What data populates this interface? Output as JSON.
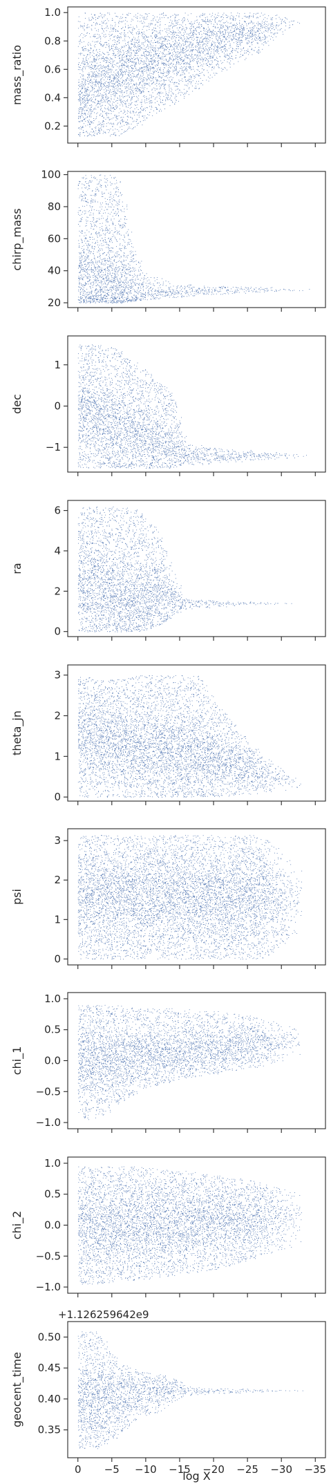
{
  "chart_data": {
    "type": "scatter",
    "xlabel": "log X",
    "x_axis_inverted": true,
    "xlim": [
      1.5,
      -36.5
    ],
    "x_ticks": [
      0,
      -5,
      -10,
      -15,
      -20,
      -25,
      -30,
      -35
    ],
    "x_tick_labels": [
      "0",
      "−5",
      "−10",
      "−15",
      "−20",
      "−25",
      "−30",
      "−35"
    ],
    "x_tick_labels_on": "bottom panel only",
    "shared_x": true,
    "marker_color": "#4c72b0",
    "grid": false,
    "legend": "none",
    "panels": [
      {
        "ylabel": "mass_ratio",
        "ylim": [
          0.08,
          1.04
        ],
        "y_ticks": [
          0.2,
          0.4,
          0.6,
          0.8,
          1.0
        ],
        "y_tick_labels": [
          "0.2",
          "0.4",
          "0.6",
          "0.8",
          "1.0"
        ],
        "x": [
          0,
          -3,
          -6,
          -9,
          -12,
          -15,
          -18,
          -21,
          -24,
          -27,
          -30,
          -33
        ],
        "y_upper": [
          1.0,
          1.0,
          1.0,
          1.0,
          1.0,
          1.0,
          1.0,
          1.0,
          1.0,
          1.0,
          0.98,
          0.93
        ],
        "y_lower": [
          0.13,
          0.13,
          0.13,
          0.2,
          0.3,
          0.38,
          0.48,
          0.58,
          0.66,
          0.72,
          0.85,
          0.9
        ],
        "y_center": [
          0.4,
          0.5,
          0.55,
          0.62,
          0.68,
          0.72,
          0.78,
          0.82,
          0.85,
          0.87,
          0.92,
          0.93
        ]
      },
      {
        "ylabel": "chirp_mass",
        "ylim": [
          17,
          102
        ],
        "y_ticks": [
          20,
          40,
          60,
          80,
          100
        ],
        "y_tick_labels": [
          "20",
          "40",
          "60",
          "80",
          "100"
        ],
        "x": [
          0,
          -3,
          -6,
          -8,
          -10,
          -13,
          -16,
          -20,
          -24,
          -28,
          -32,
          -35
        ],
        "y_upper": [
          100,
          100,
          100,
          60,
          38,
          34,
          32,
          31,
          30,
          30,
          29,
          28.5
        ],
        "y_lower": [
          20,
          20,
          20,
          21,
          22,
          23,
          24,
          25,
          26,
          27,
          27.5,
          27.8
        ],
        "y_center": [
          35,
          32,
          30,
          27,
          26,
          26,
          27,
          27.5,
          28,
          28,
          28,
          28
        ]
      },
      {
        "ylabel": "dec",
        "ylim": [
          -1.6,
          1.7
        ],
        "y_ticks": [
          -1,
          0,
          1
        ],
        "y_tick_labels": [
          "−1",
          "0",
          "1"
        ],
        "x": [
          0,
          -3,
          -6,
          -9,
          -12,
          -14,
          -16,
          -20,
          -24,
          -28,
          -32,
          -35
        ],
        "y_upper": [
          1.5,
          1.5,
          1.4,
          1.0,
          0.6,
          0.3,
          -0.9,
          -1.0,
          -1.05,
          -1.1,
          -1.15,
          -1.2
        ],
        "y_lower": [
          -1.5,
          -1.5,
          -1.5,
          -1.5,
          -1.5,
          -1.5,
          -1.45,
          -1.4,
          -1.35,
          -1.3,
          -1.25,
          -1.22
        ],
        "y_center": [
          0.0,
          -0.3,
          -0.5,
          -0.7,
          -0.8,
          -1.0,
          -1.15,
          -1.2,
          -1.2,
          -1.2,
          -1.2,
          -1.2
        ]
      },
      {
        "ylabel": "ra",
        "ylim": [
          -0.25,
          6.5
        ],
        "y_ticks": [
          0,
          2,
          4,
          6
        ],
        "y_tick_labels": [
          "0",
          "2",
          "4",
          "6"
        ],
        "x": [
          0,
          -3,
          -6,
          -9,
          -12,
          -14,
          -16,
          -20,
          -24,
          -28,
          -32,
          -35
        ],
        "y_upper": [
          6.2,
          6.2,
          6.2,
          6.0,
          5.0,
          3.0,
          1.6,
          1.55,
          1.5,
          1.45,
          1.42,
          1.4
        ],
        "y_lower": [
          0.0,
          0.0,
          0.0,
          0.0,
          0.3,
          0.8,
          1.1,
          1.2,
          1.3,
          1.35,
          1.38,
          1.4
        ],
        "y_center": [
          2.5,
          2.3,
          1.8,
          1.6,
          1.6,
          1.5,
          1.45,
          1.42,
          1.4,
          1.4,
          1.4,
          1.4
        ]
      },
      {
        "ylabel": "theta_jn",
        "ylim": [
          -0.1,
          3.25
        ],
        "y_ticks": [
          0,
          1,
          2,
          3
        ],
        "y_tick_labels": [
          "0",
          "1",
          "2",
          "3"
        ],
        "x": [
          0,
          -3,
          -6,
          -9,
          -12,
          -15,
          -18,
          -21,
          -24,
          -27,
          -30,
          -33
        ],
        "y_upper": [
          3.0,
          2.9,
          2.9,
          3.0,
          3.0,
          3.0,
          3.0,
          2.2,
          1.6,
          1.1,
          0.7,
          0.4
        ],
        "y_lower": [
          0.0,
          0.0,
          0.0,
          0.0,
          0.0,
          0.0,
          0.0,
          0.0,
          0.05,
          0.1,
          0.15,
          0.2
        ],
        "y_center": [
          1.6,
          1.5,
          1.4,
          1.3,
          1.2,
          1.1,
          1.0,
          0.9,
          0.8,
          0.6,
          0.45,
          0.3
        ]
      },
      {
        "ylabel": "psi",
        "ylim": [
          -0.15,
          3.3
        ],
        "y_ticks": [
          0,
          1,
          2,
          3
        ],
        "y_tick_labels": [
          "0",
          "1",
          "2",
          "3"
        ],
        "x": [
          0,
          -3,
          -6,
          -9,
          -12,
          -15,
          -18,
          -21,
          -24,
          -27,
          -30,
          -33
        ],
        "y_upper": [
          3.14,
          3.14,
          3.14,
          3.14,
          3.14,
          3.14,
          3.14,
          3.14,
          3.14,
          3.14,
          2.8,
          2.2
        ],
        "y_lower": [
          0.0,
          0.0,
          0.0,
          0.0,
          0.0,
          0.0,
          0.0,
          0.0,
          0.0,
          0.0,
          0.3,
          0.8
        ],
        "y_center": [
          1.57,
          1.57,
          1.57,
          1.57,
          1.57,
          1.57,
          1.57,
          1.57,
          1.57,
          1.57,
          1.57,
          1.57
        ]
      },
      {
        "ylabel": "chi_1",
        "ylim": [
          -1.1,
          1.1
        ],
        "y_ticks": [
          -1.0,
          -0.5,
          0.0,
          0.5,
          1.0
        ],
        "y_tick_labels": [
          "−1.0",
          "−0.5",
          "0.0",
          "0.5",
          "1.0"
        ],
        "x": [
          0,
          -3,
          -6,
          -9,
          -12,
          -15,
          -18,
          -21,
          -24,
          -27,
          -30,
          -33
        ],
        "y_upper": [
          0.9,
          0.9,
          0.9,
          0.85,
          0.85,
          0.85,
          0.8,
          0.8,
          0.75,
          0.7,
          0.6,
          0.5
        ],
        "y_lower": [
          -0.95,
          -0.95,
          -0.7,
          -0.5,
          -0.4,
          -0.3,
          -0.25,
          -0.2,
          -0.15,
          -0.1,
          0.0,
          0.1
        ],
        "y_center": [
          0.0,
          0.05,
          0.05,
          0.1,
          0.1,
          0.15,
          0.2,
          0.2,
          0.25,
          0.28,
          0.3,
          0.3
        ]
      },
      {
        "ylabel": "chi_2",
        "ylim": [
          -1.1,
          1.1
        ],
        "y_ticks": [
          -1.0,
          -0.5,
          0.0,
          0.5,
          1.0
        ],
        "y_tick_labels": [
          "−1.0",
          "−0.5",
          "0.0",
          "0.5",
          "1.0"
        ],
        "x": [
          0,
          -3,
          -6,
          -9,
          -12,
          -15,
          -18,
          -21,
          -24,
          -27,
          -30,
          -33
        ],
        "y_upper": [
          0.95,
          0.95,
          0.95,
          0.95,
          0.9,
          0.9,
          0.85,
          0.8,
          0.75,
          0.7,
          0.6,
          0.5
        ],
        "y_lower": [
          -0.95,
          -0.95,
          -0.9,
          -0.9,
          -0.85,
          -0.8,
          -0.75,
          -0.7,
          -0.6,
          -0.5,
          -0.4,
          -0.3
        ],
        "y_center": [
          0.0,
          0.0,
          0.0,
          0.02,
          0.03,
          0.05,
          0.05,
          0.07,
          0.08,
          0.1,
          0.1,
          0.1
        ],
        "y_tick_labels_extra": []
      },
      {
        "ylabel": "geocent_time",
        "y_offset_label": "+1.126259642e9",
        "ylim": [
          0.305,
          0.525
        ],
        "y_ticks": [
          0.35,
          0.4,
          0.45,
          0.5
        ],
        "y_tick_labels": [
          "0.35",
          "0.40",
          "0.45",
          "0.50"
        ],
        "x": [
          0,
          -3,
          -6,
          -9,
          -12,
          -14,
          -16,
          -20,
          -24,
          -28,
          -32,
          -35
        ],
        "y_upper": [
          0.51,
          0.51,
          0.46,
          0.445,
          0.44,
          0.435,
          0.42,
          0.418,
          0.417,
          0.416,
          0.415,
          0.415
        ],
        "y_lower": [
          0.32,
          0.32,
          0.34,
          0.37,
          0.38,
          0.39,
          0.405,
          0.408,
          0.41,
          0.412,
          0.413,
          0.414
        ],
        "y_center": [
          0.39,
          0.4,
          0.41,
          0.415,
          0.415,
          0.42,
          0.413,
          0.413,
          0.414,
          0.414,
          0.414,
          0.415
        ]
      }
    ]
  }
}
